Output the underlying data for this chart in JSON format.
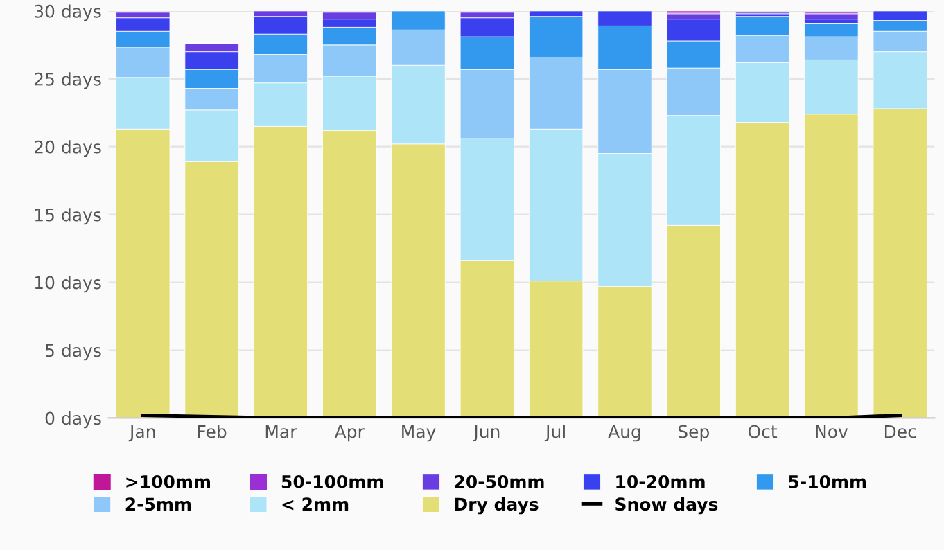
{
  "chart_data": {
    "type": "bar",
    "stacked": true,
    "categories": [
      "Jan",
      "Feb",
      "Mar",
      "Apr",
      "May",
      "Jun",
      "Jul",
      "Aug",
      "Sep",
      "Oct",
      "Nov",
      "Dec"
    ],
    "series": [
      {
        "name": "Dry days",
        "color": "#e3de75",
        "values": [
          21.3,
          18.9,
          21.5,
          21.2,
          20.2,
          11.6,
          10.1,
          9.7,
          14.2,
          21.8,
          22.4,
          22.8
        ]
      },
      {
        "name": "< 2mm",
        "color": "#aee4f8",
        "values": [
          3.8,
          3.8,
          3.2,
          4.0,
          5.8,
          9.0,
          11.2,
          9.8,
          8.1,
          4.4,
          4.0,
          4.2
        ]
      },
      {
        "name": "2-5mm",
        "color": "#8ec8f8",
        "values": [
          2.2,
          1.6,
          2.1,
          2.3,
          2.6,
          5.1,
          5.3,
          6.2,
          3.5,
          2.0,
          1.7,
          1.5
        ]
      },
      {
        "name": "5-10mm",
        "color": "#3399ee",
        "values": [
          1.2,
          1.4,
          1.5,
          1.3,
          1.4,
          2.4,
          3.0,
          3.2,
          2.0,
          1.4,
          1.0,
          0.8
        ]
      },
      {
        "name": "10-20mm",
        "color": "#3a40ee",
        "values": [
          1.0,
          1.3,
          1.3,
          0.6,
          0,
          1.4,
          0.4,
          1.1,
          1.6,
          0.2,
          0.3,
          0.7
        ]
      },
      {
        "name": "20-50mm",
        "color": "#6a3de0",
        "values": [
          0.4,
          0.6,
          0.4,
          0.5,
          0,
          0.4,
          0,
          0,
          0.4,
          0.1,
          0.4,
          0
        ]
      },
      {
        "name": "50-100mm",
        "color": "#9b2fd6",
        "values": [
          0,
          0,
          0,
          0,
          0,
          0,
          0,
          0,
          0.1,
          0,
          0.1,
          0
        ]
      },
      {
        "name": ">100mm",
        "color": "#c0179a",
        "values": [
          0,
          0,
          0,
          0,
          0,
          0,
          0,
          0,
          0.1,
          0,
          0,
          0
        ]
      },
      {
        "name": "Snow days",
        "type": "line",
        "color": "#000000",
        "values": [
          0.2,
          0.1,
          0,
          0,
          0,
          0,
          0,
          0,
          0,
          0,
          0,
          0.2
        ]
      }
    ],
    "ylim": [
      0,
      30
    ],
    "yticks": [
      {
        "value": 0,
        "label": "0 days"
      },
      {
        "value": 5,
        "label": "5 days"
      },
      {
        "value": 10,
        "label": "10 days"
      },
      {
        "value": 15,
        "label": "15 days"
      },
      {
        "value": 20,
        "label": "20 days"
      },
      {
        "value": 25,
        "label": "25 days"
      },
      {
        "value": 30,
        "label": "30 days"
      }
    ],
    "grid": "y",
    "legend": "bottom"
  }
}
